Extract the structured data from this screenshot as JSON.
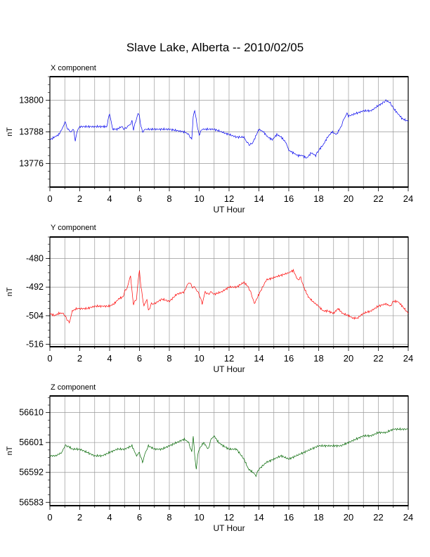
{
  "title": "Slave Lake, Alberta -- 2010/02/05",
  "chart_data": [
    {
      "type": "line",
      "panel_label": "X component",
      "xlabel": "UT Hour",
      "ylabel": "nT",
      "xlim": [
        0,
        24
      ],
      "ylim": [
        13767,
        13809
      ],
      "x_ticks": [
        "0",
        "2",
        "4",
        "6",
        "8",
        "10",
        "12",
        "14",
        "16",
        "18",
        "20",
        "22",
        "24"
      ],
      "y_ticks": [
        "13800",
        "13788",
        "13776"
      ],
      "y_tick_values": [
        13800,
        13788,
        13776
      ],
      "grid": true,
      "color": "#0000ee",
      "series": [
        {
          "x": [
            0,
            0.3,
            0.6,
            0.9,
            1.0,
            1.2,
            1.4,
            1.6,
            1.7,
            1.8,
            2.0,
            2.5,
            3.0,
            3.5,
            3.8,
            4.0,
            4.1,
            4.2,
            4.5,
            4.8,
            5.0,
            5.2,
            5.4,
            5.5,
            5.6,
            5.7,
            5.8,
            5.9,
            6.0,
            6.1,
            6.2,
            6.4,
            6.6,
            7.0,
            8.0,
            9.0,
            9.3,
            9.5,
            9.6,
            9.7,
            9.8,
            9.9,
            10.0,
            10.2,
            10.5,
            11.0,
            12.0,
            12.5,
            13.0,
            13.2,
            13.4,
            13.6,
            14.0,
            14.3,
            14.6,
            14.9,
            15.2,
            15.5,
            15.8,
            16.0,
            16.3,
            16.6,
            16.9,
            17.2,
            17.5,
            17.8,
            18.0,
            18.3,
            18.6,
            18.9,
            19.2,
            19.5,
            19.7,
            19.9,
            20.0,
            20.5,
            21.0,
            21.5,
            22.0,
            22.3,
            22.5,
            22.8,
            23.0,
            23.3,
            23.6,
            24.0
          ],
          "y": [
            13785,
            13786,
            13787,
            13790,
            13792,
            13789,
            13788,
            13789,
            13784,
            13788,
            13790,
            13790,
            13790,
            13790,
            13790,
            13795,
            13792,
            13789,
            13789,
            13790,
            13789,
            13790,
            13791,
            13792,
            13789,
            13791,
            13793,
            13795,
            13794,
            13790,
            13788,
            13789,
            13789,
            13789,
            13789,
            13788,
            13787,
            13785,
            13794,
            13796,
            13793,
            13789,
            13787,
            13789,
            13789,
            13789,
            13787,
            13786,
            13786,
            13784,
            13783,
            13784,
            13789,
            13788,
            13786,
            13785,
            13787,
            13786,
            13784,
            13781,
            13780,
            13779,
            13779,
            13778,
            13780,
            13779,
            13781,
            13783,
            13786,
            13788,
            13787,
            13790,
            13793,
            13795,
            13794,
            13795,
            13796,
            13796,
            13798,
            13799,
            13800,
            13799,
            13797,
            13795,
            13793,
            13792
          ]
        }
      ]
    },
    {
      "type": "line",
      "panel_label": "Y component",
      "xlabel": "UT Hour",
      "ylabel": "nT",
      "xlim": [
        0,
        24
      ],
      "ylim": [
        -517,
        -471
      ],
      "x_ticks": [
        "0",
        "2",
        "4",
        "6",
        "8",
        "10",
        "12",
        "14",
        "16",
        "18",
        "20",
        "22",
        "24"
      ],
      "y_ticks": [
        "-480",
        "-492",
        "-504",
        "-516"
      ],
      "y_tick_values": [
        -480,
        -492,
        -504,
        -516
      ],
      "grid": true,
      "color": "#ff0000",
      "series": [
        {
          "x": [
            0,
            0.3,
            0.6,
            0.9,
            1.1,
            1.3,
            1.5,
            1.8,
            2.0,
            2.5,
            3.0,
            3.5,
            4.0,
            4.3,
            4.6,
            4.9,
            5.0,
            5.2,
            5.4,
            5.5,
            5.6,
            5.8,
            5.9,
            6.0,
            6.1,
            6.3,
            6.5,
            6.6,
            6.8,
            7.0,
            7.5,
            8.0,
            8.5,
            9.0,
            9.2,
            9.4,
            9.5,
            9.7,
            9.9,
            10.0,
            10.2,
            10.4,
            10.6,
            10.8,
            11.0,
            11.5,
            12.0,
            12.5,
            13.0,
            13.3,
            13.5,
            13.7,
            14.0,
            14.5,
            15.0,
            15.5,
            16.0,
            16.3,
            16.6,
            16.8,
            17.0,
            17.3,
            17.6,
            18.0,
            18.3,
            18.6,
            19.0,
            19.3,
            19.6,
            20.0,
            20.3,
            20.6,
            21.0,
            21.5,
            22.0,
            22.5,
            22.8,
            23.0,
            23.3,
            23.6,
            24.0
          ],
          "y": [
            -503,
            -504,
            -503,
            -503,
            -505,
            -507,
            -502,
            -501,
            -501,
            -501,
            -500,
            -500,
            -500,
            -499,
            -497,
            -496,
            -494,
            -492,
            -487,
            -494,
            -499,
            -497,
            -490,
            -485,
            -492,
            -500,
            -497,
            -502,
            -499,
            -499,
            -497,
            -498,
            -495,
            -494,
            -491,
            -490,
            -492,
            -492,
            -494,
            -495,
            -499,
            -494,
            -495,
            -494,
            -495,
            -494,
            -492,
            -492,
            -490,
            -492,
            -495,
            -499,
            -495,
            -489,
            -488,
            -487,
            -486,
            -485,
            -489,
            -488,
            -492,
            -496,
            -498,
            -500,
            -502,
            -502,
            -503,
            -501,
            -503,
            -504,
            -505,
            -505,
            -503,
            -502,
            -500,
            -499,
            -500,
            -498,
            -498,
            -500,
            -503
          ]
        }
      ]
    },
    {
      "type": "line",
      "panel_label": "Z component",
      "xlabel": "UT Hour",
      "ylabel": "nT",
      "xlim": [
        0,
        24
      ],
      "ylim": [
        56582,
        56615
      ],
      "x_ticks": [
        "0",
        "2",
        "4",
        "6",
        "8",
        "10",
        "12",
        "14",
        "16",
        "18",
        "20",
        "22",
        "24"
      ],
      "y_ticks": [
        "56610",
        "56601",
        "56592",
        "56583"
      ],
      "y_tick_values": [
        56610,
        56601,
        56592,
        56583
      ],
      "grid": true,
      "color": "#006600",
      "series": [
        {
          "x": [
            0,
            0.4,
            0.8,
            1.0,
            1.2,
            1.5,
            2.0,
            2.5,
            3.0,
            3.5,
            4.0,
            4.5,
            5.0,
            5.5,
            5.8,
            6.0,
            6.2,
            6.4,
            6.6,
            7.0,
            7.5,
            8.0,
            8.5,
            9.0,
            9.3,
            9.5,
            9.6,
            9.7,
            9.8,
            9.9,
            10.0,
            10.3,
            10.6,
            10.8,
            11.0,
            11.3,
            11.6,
            12.0,
            12.5,
            13.0,
            13.3,
            13.6,
            13.8,
            14.0,
            14.5,
            15.0,
            15.5,
            16.0,
            16.5,
            17.0,
            17.5,
            18.0,
            18.5,
            19.0,
            19.5,
            20.0,
            20.5,
            21.0,
            21.5,
            22.0,
            22.5,
            23.0,
            23.5,
            24.0
          ],
          "y": [
            56597,
            56597,
            56598,
            56600,
            56600,
            56599,
            56599,
            56598,
            56597,
            56597,
            56598,
            56599,
            56599,
            56600,
            56597,
            56598,
            56595,
            56598,
            56600,
            56599,
            56599,
            56600,
            56601,
            56602,
            56601,
            56598,
            56603,
            56597,
            56593,
            56597,
            56599,
            56601,
            56599,
            56602,
            56603,
            56601,
            56600,
            56599,
            56599,
            56596,
            56593,
            56592,
            56591,
            56593,
            56595,
            56596,
            56597,
            56596,
            56597,
            56598,
            56599,
            56600,
            56600,
            56600,
            56600,
            56601,
            56602,
            56603,
            56603,
            56604,
            56604,
            56605,
            56605,
            56605
          ]
        }
      ]
    }
  ]
}
